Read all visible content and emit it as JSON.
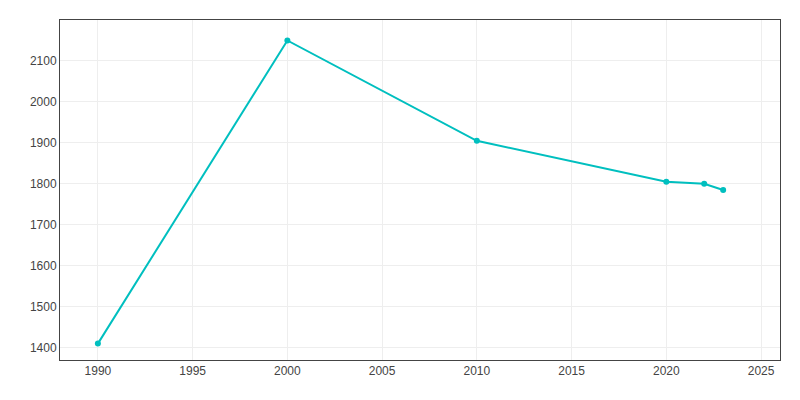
{
  "chart_data": {
    "type": "line",
    "x": [
      1990,
      2000,
      2010,
      2020,
      2022,
      2023
    ],
    "values": [
      1410,
      2150,
      1905,
      1805,
      1800,
      1785
    ],
    "color": "#00BFBF",
    "marker": "circle",
    "xlim": [
      1988,
      2026
    ],
    "ylim": [
      1370,
      2200
    ],
    "xticks": [
      1990,
      1995,
      2000,
      2005,
      2010,
      2015,
      2020,
      2025
    ],
    "yticks": [
      1400,
      1500,
      1600,
      1700,
      1800,
      1900,
      2000,
      2100
    ],
    "grid": true
  }
}
